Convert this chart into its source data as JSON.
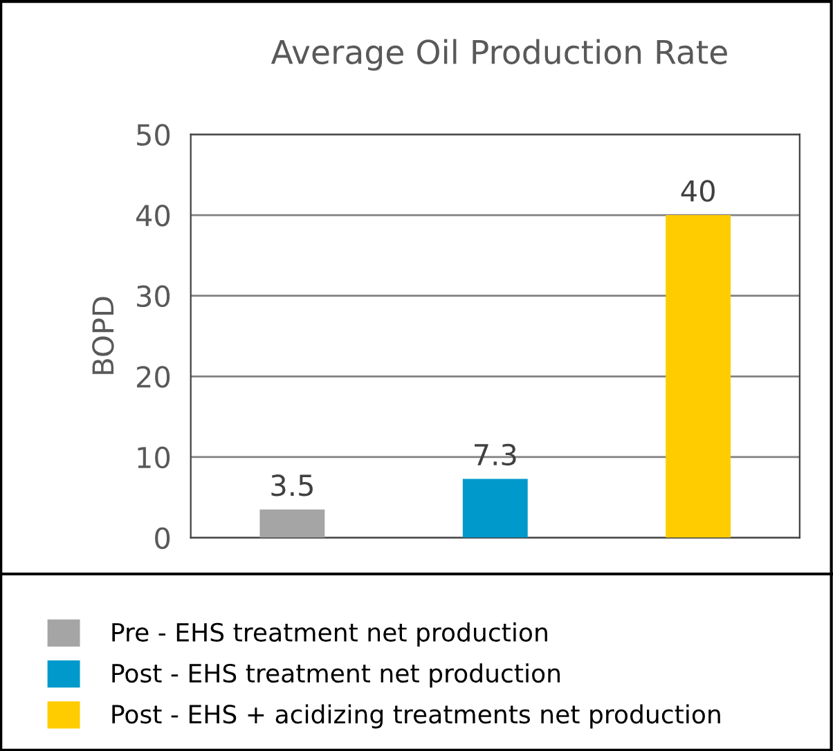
{
  "chart_data": {
    "type": "bar",
    "title": "Average Oil Production Rate",
    "ylabel": "BOPD",
    "categories": [
      null,
      null,
      null
    ],
    "series": [
      {
        "name": "Pre - EHS treatment net production",
        "color": "#a5a5a5",
        "values": [
          3.5,
          null,
          null
        ]
      },
      {
        "name": "Post - EHS treatment net production",
        "color": "#0099cc",
        "values": [
          null,
          7.3,
          null
        ]
      },
      {
        "name": "Post - EHS + acidizing treatments net production",
        "color": "#ffcc00",
        "values": [
          null,
          null,
          40
        ]
      }
    ],
    "ylim": [
      0,
      50
    ],
    "yticks": [
      0,
      10,
      20,
      30,
      40,
      50
    ],
    "grid": "y",
    "legend": "bottom",
    "data_labels": true
  }
}
